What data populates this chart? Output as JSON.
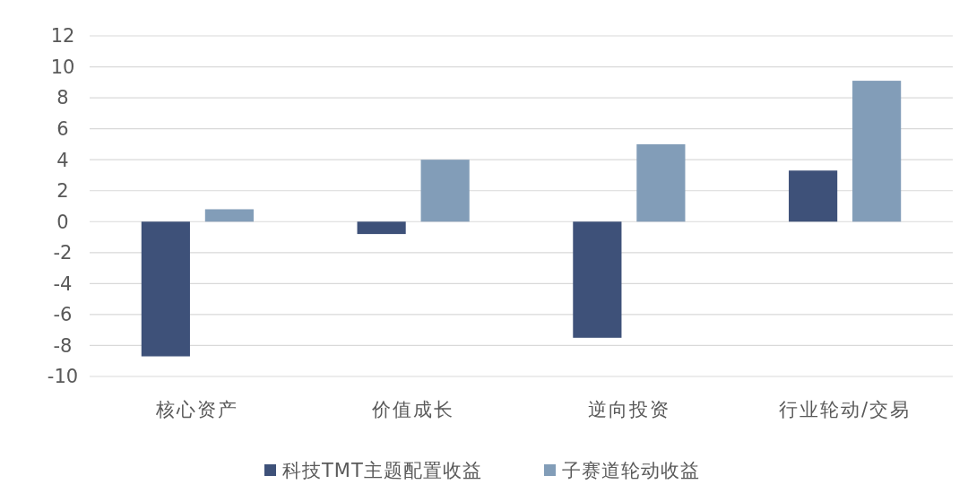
{
  "chart_data": {
    "type": "bar",
    "categories": [
      "核心资产",
      "价值成长",
      "逆向投资",
      "行业轮动/交易"
    ],
    "series": [
      {
        "name": "科技TMT主题配置收益",
        "color": "#3e5179",
        "values": [
          -8.7,
          -0.8,
          -7.5,
          3.3
        ]
      },
      {
        "name": "子赛道轮动收益",
        "color": "#829db8",
        "values": [
          0.8,
          4.0,
          5.0,
          9.1
        ]
      }
    ],
    "ylim": [
      -10,
      12
    ],
    "yticks": [
      -10,
      -8,
      -6,
      -4,
      -2,
      0,
      2,
      4,
      6,
      8,
      10,
      12
    ],
    "grid": "y",
    "legend": "bottom"
  }
}
